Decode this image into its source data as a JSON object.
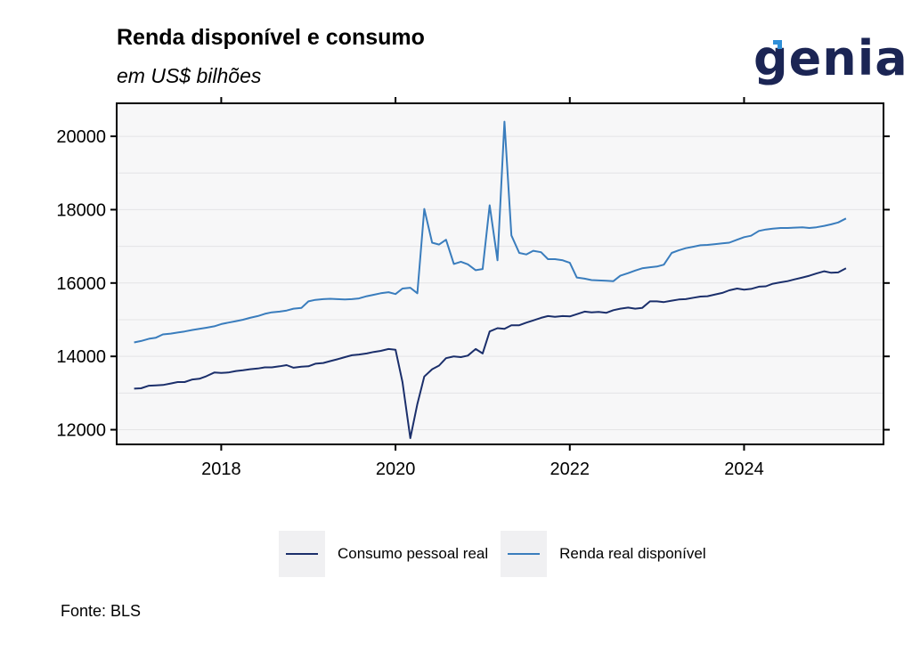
{
  "header": {
    "title": "Renda disponível e consumo",
    "subtitle": "em US$ bilhões",
    "logo_text": "genial"
  },
  "source": "Fonte: BLS",
  "colors": {
    "consumo": "#1b2f6b",
    "renda": "#3a7dbd",
    "panel_bg": "#f7f7f8",
    "grid": "#e4e4e6",
    "logo": "#1b2554",
    "logo_accent": "#2f8fd8"
  },
  "chart_data": {
    "type": "line",
    "title": "Renda disponível e consumo",
    "subtitle": "em US$ bilhões",
    "xlabel": "",
    "ylabel": "",
    "xlim": [
      2016.8,
      2025.6
    ],
    "ylim": [
      11600,
      20900
    ],
    "x_ticks": [
      2018,
      2020,
      2022,
      2024
    ],
    "y_ticks": [
      12000,
      14000,
      16000,
      18000,
      20000
    ],
    "grid": true,
    "legend_position": "bottom",
    "x": [
      2017.0,
      2017.08,
      2017.17,
      2017.25,
      2017.33,
      2017.42,
      2017.5,
      2017.58,
      2017.67,
      2017.75,
      2017.83,
      2017.92,
      2018.0,
      2018.08,
      2018.17,
      2018.25,
      2018.33,
      2018.42,
      2018.5,
      2018.58,
      2018.67,
      2018.75,
      2018.83,
      2018.92,
      2019.0,
      2019.08,
      2019.17,
      2019.25,
      2019.33,
      2019.42,
      2019.5,
      2019.58,
      2019.67,
      2019.75,
      2019.83,
      2019.92,
      2020.0,
      2020.08,
      2020.17,
      2020.25,
      2020.33,
      2020.42,
      2020.5,
      2020.58,
      2020.67,
      2020.75,
      2020.83,
      2020.92,
      2021.0,
      2021.08,
      2021.17,
      2021.25,
      2021.33,
      2021.42,
      2021.5,
      2021.58,
      2021.67,
      2021.75,
      2021.83,
      2021.92,
      2022.0,
      2022.08,
      2022.17,
      2022.25,
      2022.33,
      2022.42,
      2022.5,
      2022.58,
      2022.67,
      2022.75,
      2022.83,
      2022.92,
      2023.0,
      2023.08,
      2023.17,
      2023.25,
      2023.33,
      2023.42,
      2023.5,
      2023.58,
      2023.67,
      2023.75,
      2023.83,
      2023.92,
      2024.0,
      2024.08,
      2024.17,
      2024.25,
      2024.33,
      2024.42,
      2024.5,
      2024.58,
      2024.67,
      2024.75,
      2024.83,
      2024.92,
      2025.0,
      2025.08,
      2025.17
    ],
    "series": [
      {
        "name": "Consumo pessoal real",
        "color": "#1b2f6b",
        "values": [
          13120,
          13130,
          13200,
          13210,
          13220,
          13260,
          13300,
          13300,
          13370,
          13390,
          13460,
          13560,
          13550,
          13560,
          13600,
          13620,
          13650,
          13670,
          13700,
          13700,
          13730,
          13760,
          13690,
          13720,
          13730,
          13800,
          13820,
          13870,
          13920,
          13980,
          14030,
          14050,
          14080,
          14120,
          14150,
          14200,
          14180,
          13300,
          11770,
          12700,
          13450,
          13650,
          13750,
          13950,
          14000,
          13980,
          14020,
          14200,
          14080,
          14680,
          14770,
          14750,
          14850,
          14850,
          14920,
          14980,
          15050,
          15100,
          15080,
          15100,
          15090,
          15150,
          15220,
          15200,
          15210,
          15190,
          15260,
          15300,
          15330,
          15300,
          15320,
          15500,
          15500,
          15480,
          15520,
          15550,
          15560,
          15600,
          15630,
          15640,
          15690,
          15730,
          15800,
          15850,
          15820,
          15840,
          15900,
          15910,
          15980,
          16020,
          16050,
          16100,
          16150,
          16200,
          16260,
          16320,
          16280,
          16290,
          16400
        ]
      },
      {
        "name": "Renda real disponível",
        "color": "#3a7dbd",
        "values": [
          14380,
          14420,
          14480,
          14510,
          14600,
          14620,
          14650,
          14680,
          14720,
          14750,
          14780,
          14820,
          14880,
          14920,
          14960,
          15000,
          15050,
          15100,
          15160,
          15200,
          15220,
          15250,
          15300,
          15320,
          15500,
          15540,
          15560,
          15570,
          15560,
          15550,
          15560,
          15580,
          15640,
          15680,
          15720,
          15750,
          15700,
          15850,
          15870,
          15720,
          18020,
          17100,
          17050,
          17180,
          16520,
          16580,
          16510,
          16350,
          16380,
          18120,
          16620,
          20400,
          17300,
          16820,
          16780,
          16880,
          16840,
          16650,
          16650,
          16620,
          16550,
          16150,
          16120,
          16080,
          16070,
          16060,
          16050,
          16200,
          16270,
          16340,
          16400,
          16430,
          16450,
          16500,
          16820,
          16890,
          16950,
          16990,
          17030,
          17040,
          17060,
          17080,
          17100,
          17180,
          17250,
          17290,
          17420,
          17460,
          17480,
          17500,
          17500,
          17510,
          17520,
          17500,
          17520,
          17560,
          17600,
          17650,
          17760
        ]
      }
    ]
  }
}
